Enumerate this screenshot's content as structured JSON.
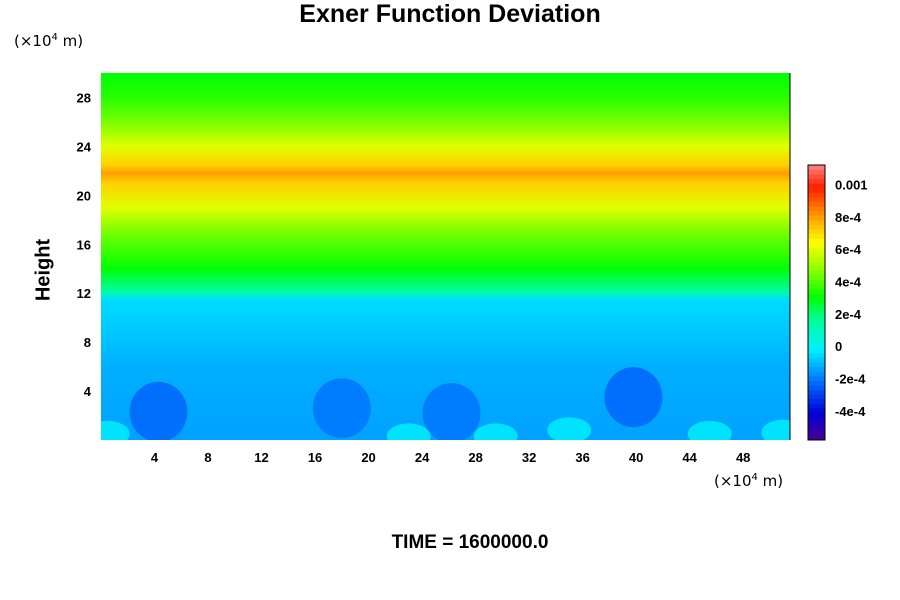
{
  "chart_data": {
    "type": "heatmap",
    "title": "Exner Function Deviation",
    "ylabel": "Height",
    "xlabel": "",
    "x_unit": {
      "prefix": "(×10",
      "exp": "4",
      "suffix": " m)"
    },
    "y_unit": {
      "prefix": "(×10",
      "exp": "4",
      "suffix": " m)"
    },
    "xlim": [
      0,
      51.5
    ],
    "ylim": [
      0,
      30
    ],
    "x_ticks": [
      4,
      8,
      12,
      16,
      20,
      24,
      28,
      32,
      36,
      40,
      44,
      48
    ],
    "y_ticks": [
      4,
      8,
      12,
      16,
      20,
      24,
      28
    ],
    "colorbar": {
      "range": [
        -0.00058,
        0.00112
      ],
      "tick_values": [
        -0.0004,
        -0.0002,
        0,
        0.0002,
        0.0004,
        0.0006,
        0.0008,
        0.001
      ],
      "tick_labels": [
        "-4e-4",
        "-2e-4",
        "0",
        "2e-4",
        "4e-4",
        "6e-4",
        "8e-4",
        "0.001"
      ]
    },
    "vertical_profile": [
      {
        "height": 0,
        "value": -0.00014
      },
      {
        "height": 6,
        "value": -0.00012
      },
      {
        "height": 9,
        "value": -8e-05
      },
      {
        "height": 11.5,
        "value": -5e-05
      },
      {
        "height": 12,
        "value": 0.00012
      },
      {
        "height": 14,
        "value": 0.0003
      },
      {
        "height": 17,
        "value": 0.00045
      },
      {
        "height": 19,
        "value": 0.0006
      },
      {
        "height": 21,
        "value": 0.00072
      },
      {
        "height": 21.8,
        "value": 0.0008
      },
      {
        "height": 22.5,
        "value": 0.00072
      },
      {
        "height": 24,
        "value": 0.0006
      },
      {
        "height": 26,
        "value": 0.00045
      },
      {
        "height": 28,
        "value": 0.00035
      },
      {
        "height": 30,
        "value": 0.0003
      }
    ],
    "features": [
      {
        "kind": "min",
        "x": 4.3,
        "y": 2.3,
        "value": -0.00022
      },
      {
        "kind": "min",
        "x": 18,
        "y": 2.6,
        "value": -0.0002
      },
      {
        "kind": "min",
        "x": 26.2,
        "y": 2.2,
        "value": -0.0002
      },
      {
        "kind": "min",
        "x": 39.8,
        "y": 3.5,
        "value": -0.00022
      },
      {
        "kind": "max",
        "x": 0.5,
        "y": 0.5,
        "value": -4e-05
      },
      {
        "kind": "max",
        "x": 23,
        "y": 0.3,
        "value": -4e-05
      },
      {
        "kind": "max",
        "x": 29.5,
        "y": 0.3,
        "value": -4e-05
      },
      {
        "kind": "max",
        "x": 35,
        "y": 0.8,
        "value": -4e-05
      },
      {
        "kind": "max",
        "x": 45.5,
        "y": 0.5,
        "value": -4e-05
      },
      {
        "kind": "max",
        "x": 51,
        "y": 0.6,
        "value": -4e-05
      }
    ]
  },
  "time_label": "TIME = 1600000.0"
}
